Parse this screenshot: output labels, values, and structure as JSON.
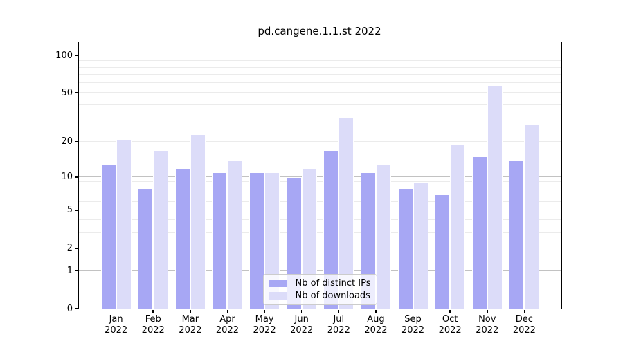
{
  "title": "pd.cangene.1.1.st 2022",
  "chart_data": {
    "type": "bar",
    "title": "pd.cangene.1.1.st 2022",
    "categories": [
      "Jan 2022",
      "Feb 2022",
      "Mar 2022",
      "Apr 2022",
      "May 2022",
      "Jun 2022",
      "Jul 2022",
      "Aug 2022",
      "Sep 2022",
      "Oct 2022",
      "Nov 2022",
      "Dec 2022"
    ],
    "x_tick_months": [
      "Jan",
      "Feb",
      "Mar",
      "Apr",
      "May",
      "Jun",
      "Jul",
      "Aug",
      "Sep",
      "Oct",
      "Nov",
      "Dec"
    ],
    "x_tick_year": "2022",
    "series": [
      {
        "name": "Nb of distinct IPs",
        "color": "#a7a7f4",
        "values": [
          13,
          8,
          12,
          11,
          11,
          10,
          17,
          11,
          8,
          7,
          15,
          14
        ]
      },
      {
        "name": "Nb of downloads",
        "color": "#dcdcf9",
        "values": [
          21,
          17,
          23,
          14,
          11,
          12,
          32,
          13,
          9,
          19,
          58,
          28
        ]
      }
    ],
    "yscale": "log1p",
    "ylim": [
      0,
      128
    ],
    "y_tick_values": [
      100,
      50,
      20,
      10,
      5,
      2,
      1,
      0
    ],
    "y_gridlines_major": [
      1,
      10,
      100
    ],
    "y_gridlines_minor": [
      2,
      3,
      4,
      5,
      6,
      7,
      8,
      9,
      20,
      30,
      40,
      50,
      60,
      70,
      80,
      90
    ],
    "grid": "horizontal",
    "legend_position": "lower center",
    "xlabel": "",
    "ylabel": ""
  },
  "colors": {
    "grid_major": "#c2c2c2",
    "grid_minor": "#ebebeb",
    "spine": "#000000",
    "background": "#ffffff"
  }
}
